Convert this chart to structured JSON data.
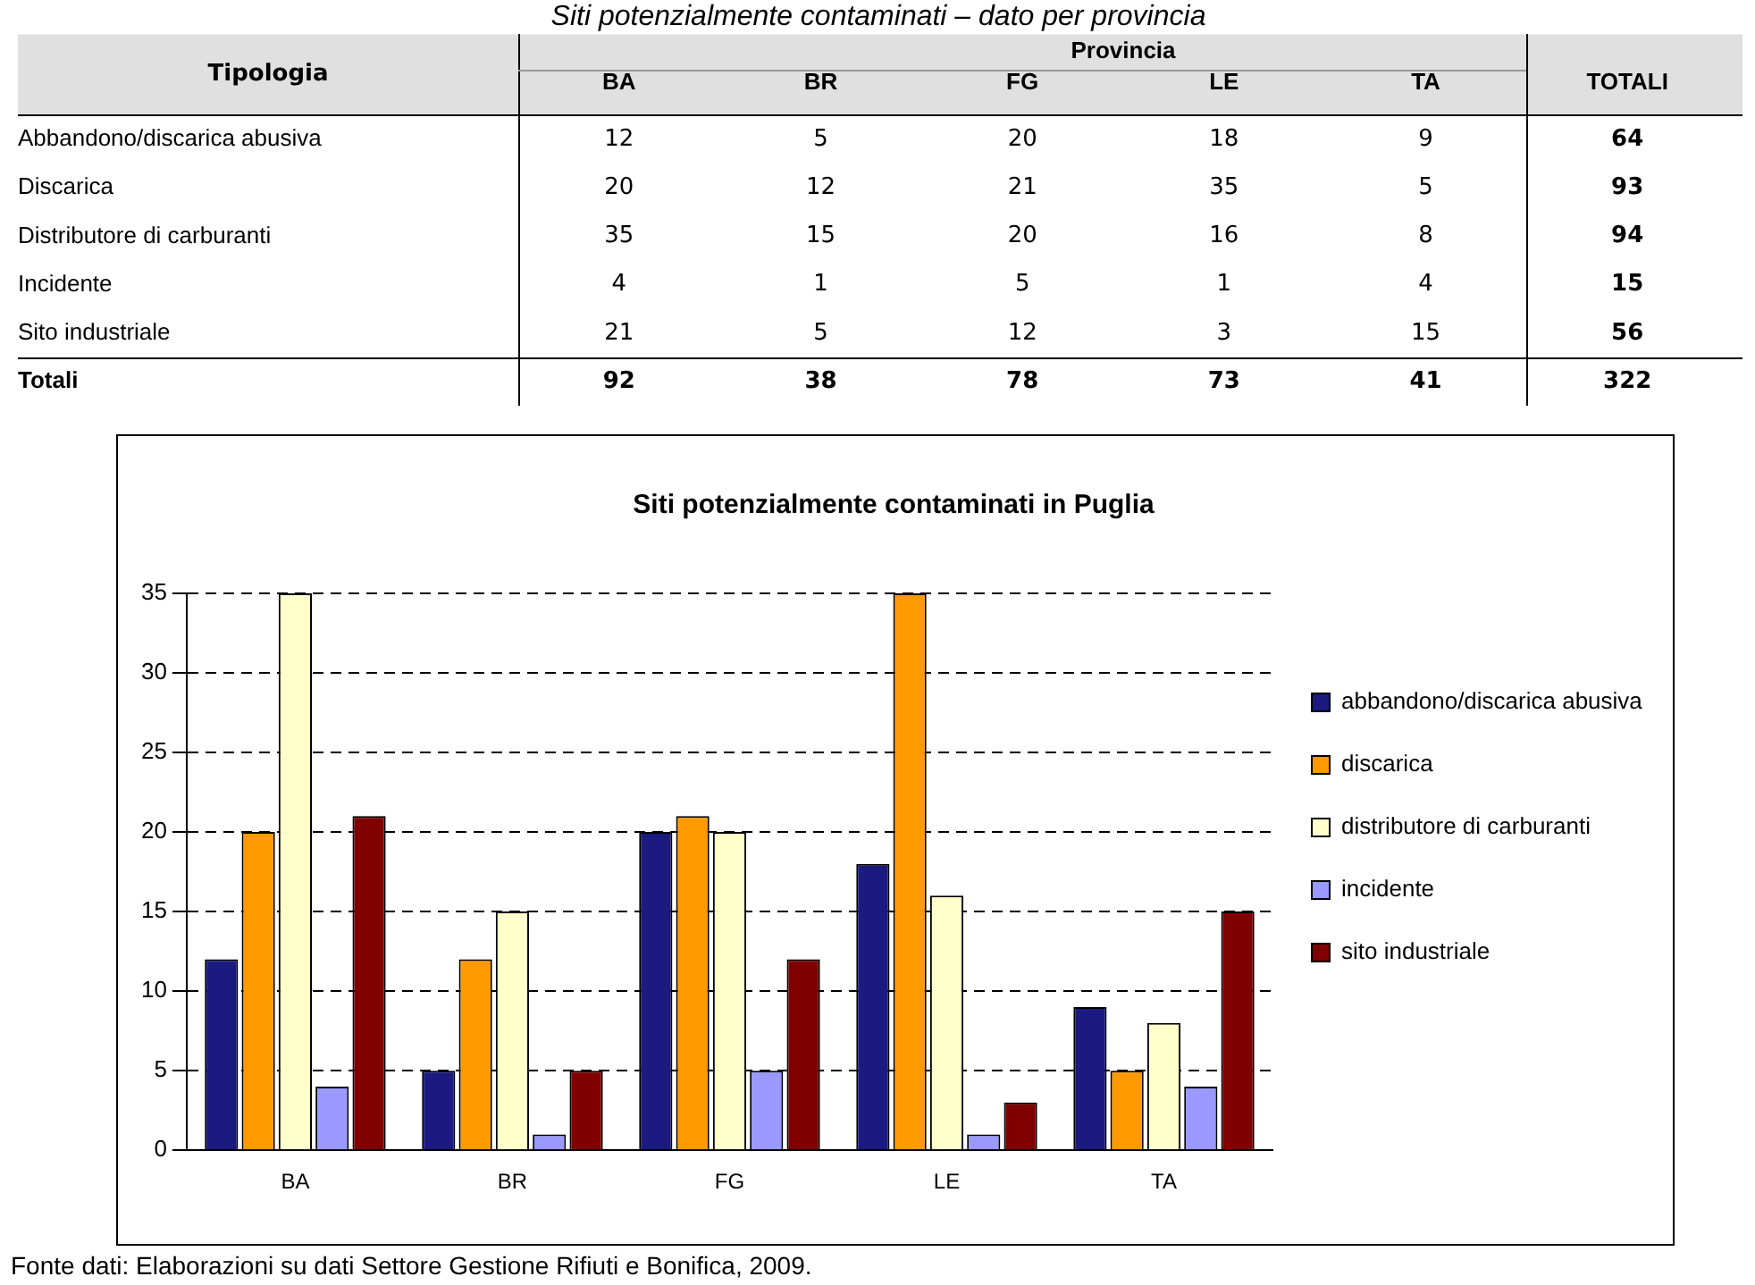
{
  "chart_data": [
    {
      "type": "heatmap",
      "title": "Siti potenzialmente contaminati – dato per provincia",
      "xlabel": "Provincia",
      "ylabel": "Tipologia",
      "categories": [
        "BA",
        "BR",
        "FG",
        "LE",
        "TA",
        "TOTALI"
      ],
      "y_categories": [
        "Abbandono/discarica abusiva",
        "Discarica",
        "Distributore di carburanti",
        "Incidente",
        "Sito industriale",
        "Totali"
      ],
      "cells": [
        [
          12,
          5,
          20,
          18,
          9,
          64
        ],
        [
          20,
          12,
          21,
          35,
          5,
          93
        ],
        [
          35,
          15,
          20,
          16,
          8,
          94
        ],
        [
          4,
          1,
          5,
          1,
          4,
          15
        ],
        [
          21,
          5,
          12,
          3,
          15,
          56
        ],
        [
          92,
          38,
          78,
          73,
          41,
          322
        ]
      ],
      "data_labels": true
    },
    {
      "type": "bar",
      "title": "Siti potenzialmente contaminati in Puglia",
      "categories": [
        "BA",
        "BR",
        "FG",
        "LE",
        "TA"
      ],
      "series": [
        {
          "name": "abbandono/discarica abusiva",
          "color": "#1a1a80",
          "values": [
            12,
            5,
            20,
            18,
            9
          ]
        },
        {
          "name": "discarica",
          "color": "#ff9900",
          "values": [
            20,
            12,
            21,
            35,
            5
          ]
        },
        {
          "name": "distributore di carburanti",
          "color": "#ffffcc",
          "values": [
            35,
            15,
            20,
            16,
            8
          ]
        },
        {
          "name": "incidente",
          "color": "#9999ff",
          "values": [
            4,
            1,
            5,
            1,
            4
          ]
        },
        {
          "name": "sito industriale",
          "color": "#800000",
          "values": [
            21,
            5,
            12,
            3,
            15
          ]
        }
      ],
      "ylim": [
        0,
        35
      ],
      "yticks": [
        0,
        5,
        10,
        15,
        20,
        25,
        30,
        35
      ],
      "grid": "y",
      "legend": "right",
      "annotations": [
        "Fonte dati: Elaborazioni su dati Settore Gestione Rifiuti e Bonifica, 2009."
      ]
    }
  ]
}
